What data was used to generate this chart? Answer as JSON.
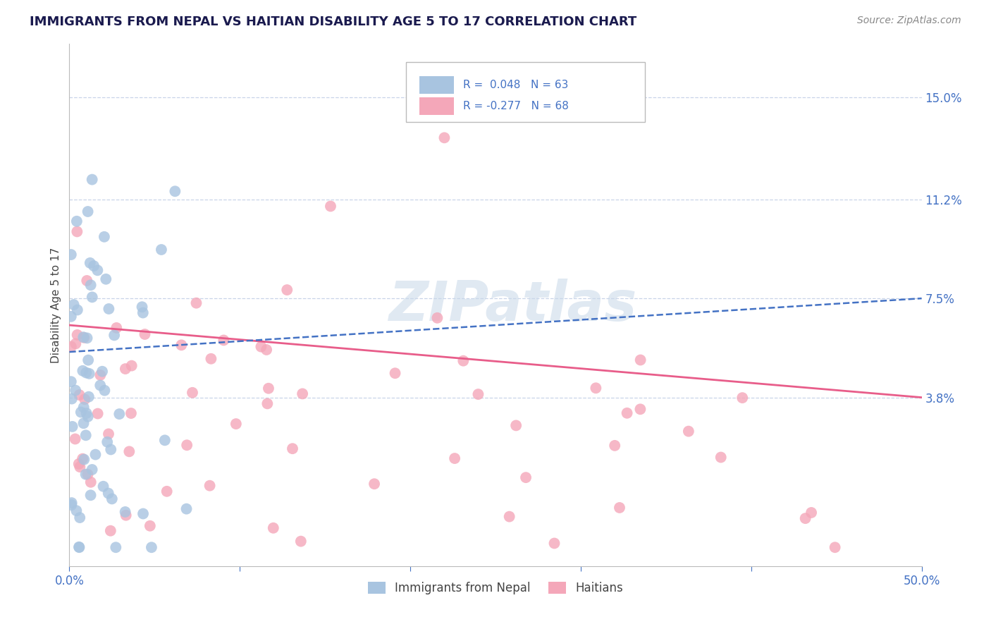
{
  "title": "IMMIGRANTS FROM NEPAL VS HAITIAN DISABILITY AGE 5 TO 17 CORRELATION CHART",
  "source": "Source: ZipAtlas.com",
  "ylabel": "Disability Age 5 to 17",
  "xlim": [
    0.0,
    0.5
  ],
  "ylim": [
    -0.025,
    0.17
  ],
  "ytick_right_vals": [
    0.038,
    0.075,
    0.112,
    0.15
  ],
  "ytick_right_labels": [
    "3.8%",
    "7.5%",
    "11.2%",
    "15.0%"
  ],
  "nepal_R": 0.048,
  "nepal_N": 63,
  "haitian_R": -0.277,
  "haitian_N": 68,
  "nepal_color": "#a8c4e0",
  "haitian_color": "#f4a7b9",
  "nepal_line_color": "#4472c4",
  "haitian_line_color": "#e85d8a",
  "watermark": "ZIPatlas",
  "watermark_color": "#c8d8e8",
  "background_color": "#ffffff",
  "grid_color": "#c8d4e8",
  "legend_color": "#4472c4",
  "title_color": "#1a1a4e",
  "title_fontsize": 13,
  "axis_label_color": "#4472c4",
  "source_color": "#888888"
}
